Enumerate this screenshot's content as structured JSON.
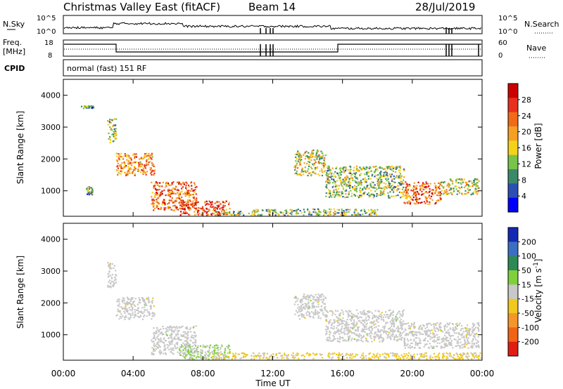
{
  "header": {
    "title": "Christmas Valley East (fitACF)",
    "beam": "Beam 14",
    "date": "28/Jul/2019"
  },
  "noise_panel": {
    "left_label": "N.Sky",
    "right_label": "N.Search",
    "left_ticks": [
      "10^5",
      "10^0"
    ],
    "right_ticks": [
      "10^5",
      "10^0"
    ]
  },
  "freq_panel": {
    "left_label_line1": "Freq.",
    "left_label_line2": "[MHz]",
    "right_label": "Nave",
    "left_ticks": [
      "18",
      "8"
    ],
    "right_ticks": [
      "60",
      "0"
    ]
  },
  "cpid": {
    "label": "CPID",
    "mode": "normal (fast) 151 RF"
  },
  "x_axis": {
    "ticks": [
      "00:00",
      "04:00",
      "08:00",
      "12:00",
      "16:00",
      "20:00",
      "00:00"
    ],
    "label": "Time UT"
  },
  "colors": {
    "power_scale": [
      "#0000ff",
      "#2b4fb5",
      "#3a8a6a",
      "#78c34a",
      "#f5d21a",
      "#f5a023",
      "#f06a19",
      "#e8301c",
      "#cc0000"
    ],
    "velocity_scale": [
      "#1428b4",
      "#3a6fc2",
      "#2c8a55",
      "#7fd13c",
      "#c8c8c8",
      "#f0c81e",
      "#f5962a",
      "#f06414",
      "#e01e14"
    ],
    "gray": "#c8c8c8"
  },
  "chart_data": [
    {
      "type": "heatmap",
      "title": "Power",
      "xlabel": "Time UT",
      "ylabel": "Slant Range [km]",
      "xlim": [
        "00:00",
        "24:00"
      ],
      "ylim": [
        200,
        4500
      ],
      "y_ticks": [
        "1000",
        "2000",
        "3000",
        "4000"
      ],
      "colorbar": {
        "label": "Power [dB]",
        "ticks": [
          "4",
          "8",
          "12",
          "16",
          "20",
          "24",
          "28"
        ],
        "range": [
          0,
          30
        ]
      },
      "echo_regions": [
        {
          "t_start": 1.0,
          "t_end": 1.7,
          "r_start": 3600,
          "r_end": 3700,
          "level": 10
        },
        {
          "t_start": 1.3,
          "t_end": 1.7,
          "r_start": 900,
          "r_end": 1150,
          "level": 8
        },
        {
          "t_start": 2.5,
          "t_end": 3.0,
          "r_start": 2500,
          "r_end": 3300,
          "level": 12
        },
        {
          "t_start": 3.0,
          "t_end": 5.2,
          "r_start": 1500,
          "r_end": 2200,
          "level": 20
        },
        {
          "t_start": 5.0,
          "t_end": 7.6,
          "r_start": 400,
          "r_end": 1300,
          "level": 22
        },
        {
          "t_start": 6.6,
          "t_end": 9.5,
          "r_start": 250,
          "r_end": 700,
          "level": 24
        },
        {
          "t_start": 8.5,
          "t_end": 18.0,
          "r_start": 250,
          "r_end": 450,
          "level": 12
        },
        {
          "t_start": 13.2,
          "t_end": 15.0,
          "r_start": 1500,
          "r_end": 2300,
          "level": 14
        },
        {
          "t_start": 15.0,
          "t_end": 19.5,
          "r_start": 800,
          "r_end": 1800,
          "level": 12
        },
        {
          "t_start": 19.5,
          "t_end": 21.6,
          "r_start": 600,
          "r_end": 1300,
          "level": 22
        },
        {
          "t_start": 21.6,
          "t_end": 23.8,
          "r_start": 900,
          "r_end": 1400,
          "level": 14
        }
      ]
    },
    {
      "type": "heatmap",
      "title": "Velocity",
      "xlabel": "Time UT",
      "ylabel": "Slant Range [km]",
      "xlim": [
        "00:00",
        "24:00"
      ],
      "ylim": [
        200,
        4500
      ],
      "y_ticks": [
        "1000",
        "2000",
        "3000",
        "4000"
      ],
      "colorbar": {
        "label": "Velocity [m s^-1]",
        "ticks": [
          "200",
          "100",
          "50",
          "15",
          "-15",
          "-50",
          "-100",
          "-200"
        ],
        "range": [
          -250,
          250
        ]
      },
      "echo_regions": [
        {
          "t_start": 2.5,
          "t_end": 3.0,
          "r_start": 2500,
          "r_end": 3300,
          "level": 0
        },
        {
          "t_start": 3.0,
          "t_end": 5.2,
          "r_start": 1500,
          "r_end": 2200,
          "level": 0
        },
        {
          "t_start": 5.0,
          "t_end": 7.6,
          "r_start": 400,
          "r_end": 1300,
          "level": 0
        },
        {
          "t_start": 6.6,
          "t_end": 9.5,
          "r_start": 250,
          "r_end": 700,
          "level": 30
        },
        {
          "t_start": 8.5,
          "t_end": 24.0,
          "r_start": 250,
          "r_end": 450,
          "level": -40
        },
        {
          "t_start": 13.2,
          "t_end": 15.0,
          "r_start": 1500,
          "r_end": 2300,
          "level": 0
        },
        {
          "t_start": 15.0,
          "t_end": 19.5,
          "r_start": 800,
          "r_end": 1800,
          "level": 0
        },
        {
          "t_start": 19.5,
          "t_end": 23.8,
          "r_start": 600,
          "r_end": 1400,
          "level": 0
        }
      ]
    }
  ]
}
